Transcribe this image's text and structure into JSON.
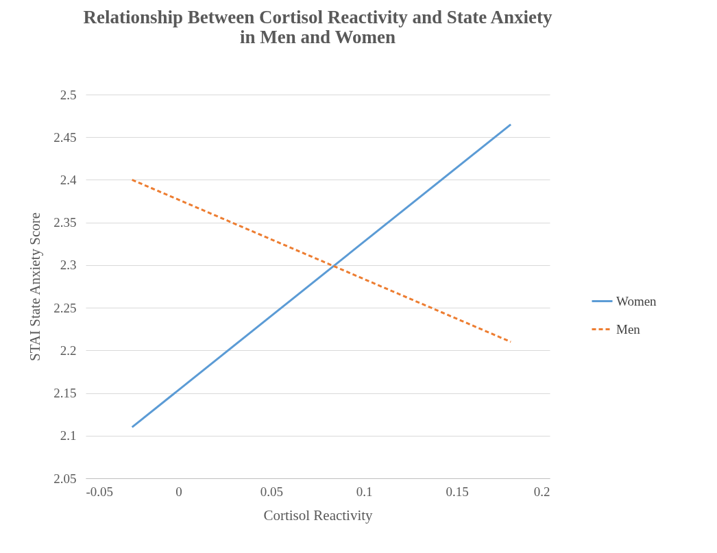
{
  "chart_data": {
    "type": "line",
    "title": "Relationship Between Cortisol Reactivity and State Anxiety in Men and Women",
    "xlabel": "Cortisol Reactivity",
    "ylabel": "STAI State Anxiety Score",
    "xlim": [
      -0.05,
      0.2
    ],
    "xticks": [
      -0.05,
      0,
      0.05,
      0.1,
      0.15,
      0.2
    ],
    "ylim": [
      2.05,
      2.5
    ],
    "yticks": [
      2.05,
      2.1,
      2.15,
      2.2,
      2.25,
      2.3,
      2.35,
      2.4,
      2.45,
      2.5
    ],
    "grid": "y",
    "legend": "right",
    "marker": "none",
    "x": [
      -0.025,
      0.179
    ],
    "series": [
      {
        "name": "Women",
        "color": "#5b9bd5",
        "line_style": "solid",
        "values": [
          2.11,
          2.465
        ]
      },
      {
        "name": "Men",
        "color": "#ed7d31",
        "line_style": "dashed",
        "values": [
          2.4,
          2.21
        ]
      }
    ]
  }
}
